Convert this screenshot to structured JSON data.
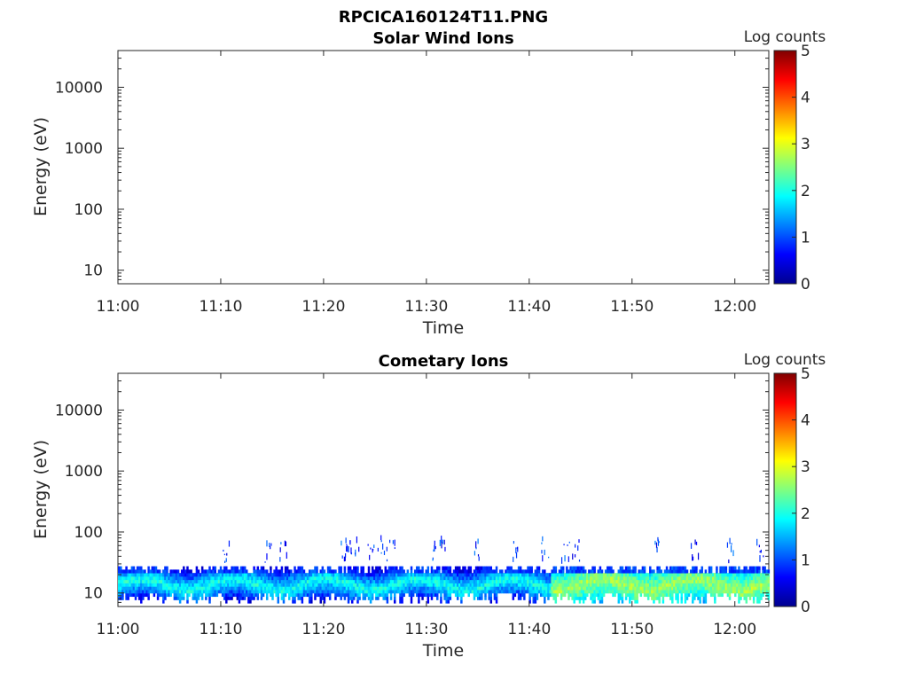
{
  "figure": {
    "title": "RPCICA160124T11.PNG"
  },
  "chart_data": [
    {
      "type": "heatmap",
      "title": "Solar Wind Ions",
      "xlabel": "Time",
      "ylabel": "Energy (eV)",
      "x_ticks": [
        "11:00",
        "11:10",
        "11:20",
        "11:30",
        "11:40",
        "11:50",
        "12:00"
      ],
      "y_ticks": [
        "10",
        "100",
        "1000",
        "10000"
      ],
      "y_scale": "log",
      "xlim": [
        "11:00",
        "12:03"
      ],
      "ylim": [
        6,
        40000
      ],
      "colorbar": {
        "label": "Log counts",
        "ticks": [
          "0",
          "1",
          "2",
          "3",
          "4",
          "5"
        ],
        "range": [
          0,
          5
        ],
        "colormap": "jet"
      },
      "data_description": "",
      "bands": []
    },
    {
      "type": "heatmap",
      "title": "Cometary Ions",
      "xlabel": "Time",
      "ylabel": "Energy (eV)",
      "x_ticks": [
        "11:00",
        "11:10",
        "11:20",
        "11:30",
        "11:40",
        "11:50",
        "12:00"
      ],
      "y_ticks": [
        "10",
        "100",
        "1000",
        "10000"
      ],
      "y_scale": "log",
      "xlim": [
        "11:00",
        "12:03"
      ],
      "ylim": [
        6,
        40000
      ],
      "colorbar": {
        "label": "Log counts",
        "ticks": [
          "0",
          "1",
          "2",
          "3",
          "4",
          "5"
        ],
        "range": [
          0,
          5
        ],
        "colormap": "jet"
      },
      "bands": [
        {
          "t_start_min": 0,
          "t_end_min": 63,
          "e_low": 6,
          "e_high": 30,
          "log_counts_core": 2.0,
          "log_counts_edge": 0.6
        },
        {
          "t_start_min": 42,
          "t_end_min": 63,
          "e_low": 6,
          "e_high": 25,
          "log_counts_core": 2.7,
          "log_counts_edge": 1.8
        }
      ],
      "sparse_high_energy_events_min": [
        10.5,
        14.5,
        16,
        22,
        22.5,
        23,
        24.5,
        25.5,
        26.5,
        30.5,
        31.5,
        35,
        38.5,
        41.5,
        43.5,
        44.5,
        52.5,
        56,
        59.5,
        62.5
      ],
      "sparse_high_energy_ceiling_eV": 80
    }
  ]
}
